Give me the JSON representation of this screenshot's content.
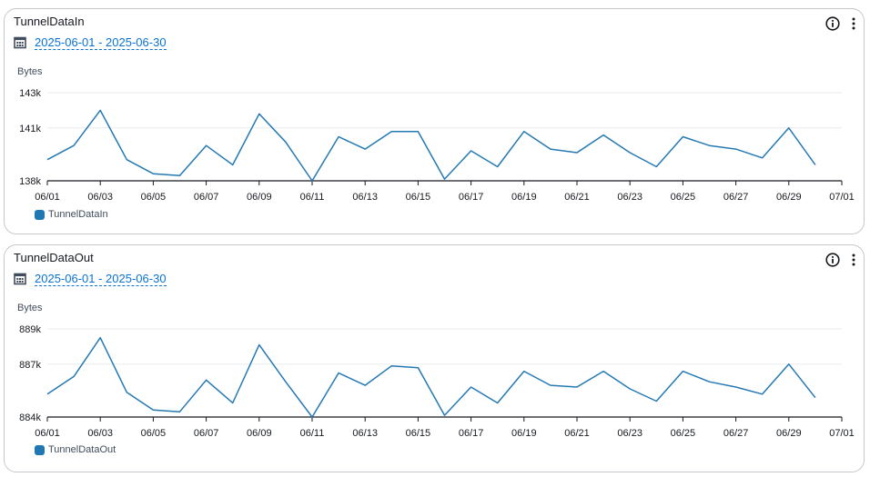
{
  "colors": {
    "series": "#2479b3",
    "grid": "#e9ebed",
    "axis": "#16191f",
    "link": "#0972d3"
  },
  "icons": {
    "calendar": "calendar-icon",
    "info": "info-icon",
    "menu": "more-vertical-icon"
  },
  "panels": [
    {
      "title": "TunnelDataIn",
      "date_range": "2025-06-01 - 2025-06-30",
      "legend": "TunnelDataIn"
    },
    {
      "title": "TunnelDataOut",
      "date_range": "2025-06-01 - 2025-06-30",
      "legend": "TunnelDataOut"
    }
  ],
  "chart_data": [
    {
      "type": "line",
      "title": "TunnelDataIn",
      "ylabel": "Bytes",
      "xlabel": "",
      "x": [
        "06/01",
        "06/02",
        "06/03",
        "06/04",
        "06/05",
        "06/06",
        "06/07",
        "06/08",
        "06/09",
        "06/10",
        "06/11",
        "06/12",
        "06/13",
        "06/14",
        "06/15",
        "06/16",
        "06/17",
        "06/18",
        "06/19",
        "06/20",
        "06/21",
        "06/22",
        "06/23",
        "06/24",
        "06/25",
        "06/26",
        "06/27",
        "06/28",
        "06/29",
        "06/30"
      ],
      "x_ticks": [
        "06/01",
        "06/03",
        "06/05",
        "06/07",
        "06/09",
        "06/11",
        "06/13",
        "06/15",
        "06/17",
        "06/19",
        "06/21",
        "06/23",
        "06/25",
        "06/27",
        "06/29",
        "07/01"
      ],
      "y_ticks": [
        "138k",
        "141k",
        "143k"
      ],
      "ylim": [
        138000,
        143000
      ],
      "series": [
        {
          "name": "TunnelDataIn",
          "values": [
            139200,
            140000,
            142000,
            139200,
            138400,
            138300,
            140000,
            138900,
            141800,
            140200,
            138000,
            140500,
            139800,
            140800,
            140800,
            138100,
            139700,
            138800,
            140800,
            139800,
            139600,
            140600,
            139600,
            138800,
            140500,
            140000,
            139800,
            139300,
            141000,
            138900
          ]
        }
      ],
      "legend": "bottom-left",
      "grid": true
    },
    {
      "type": "line",
      "title": "TunnelDataOut",
      "ylabel": "Bytes",
      "xlabel": "",
      "x": [
        "06/01",
        "06/02",
        "06/03",
        "06/04",
        "06/05",
        "06/06",
        "06/07",
        "06/08",
        "06/09",
        "06/10",
        "06/11",
        "06/12",
        "06/13",
        "06/14",
        "06/15",
        "06/16",
        "06/17",
        "06/18",
        "06/19",
        "06/20",
        "06/21",
        "06/22",
        "06/23",
        "06/24",
        "06/25",
        "06/26",
        "06/27",
        "06/28",
        "06/29",
        "06/30"
      ],
      "x_ticks": [
        "06/01",
        "06/03",
        "06/05",
        "06/07",
        "06/09",
        "06/11",
        "06/13",
        "06/15",
        "06/17",
        "06/19",
        "06/21",
        "06/23",
        "06/25",
        "06/27",
        "06/29",
        "07/01"
      ],
      "y_ticks": [
        "884k",
        "887k",
        "889k"
      ],
      "ylim": [
        884000,
        889000
      ],
      "series": [
        {
          "name": "TunnelDataOut",
          "values": [
            885300,
            886300,
            888500,
            885400,
            884400,
            884300,
            886100,
            884800,
            888100,
            886000,
            884000,
            886500,
            885800,
            886900,
            886800,
            884100,
            885700,
            884800,
            886600,
            885800,
            885700,
            886600,
            885600,
            884900,
            886600,
            886000,
            885700,
            885300,
            887000,
            885100
          ]
        }
      ],
      "legend": "bottom-left",
      "grid": true
    }
  ]
}
